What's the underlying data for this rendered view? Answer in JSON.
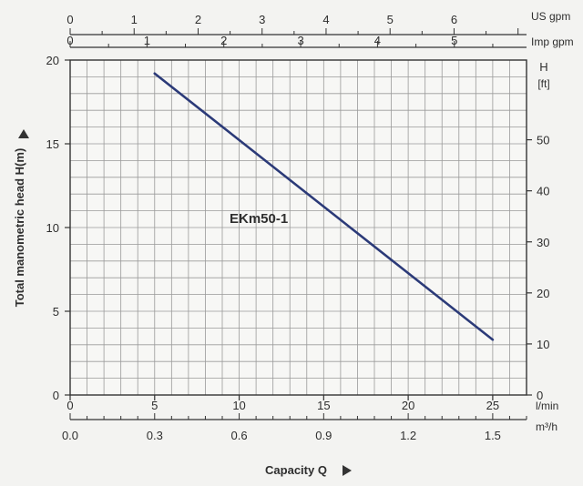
{
  "chart_data": {
    "type": "line",
    "title": "",
    "curve_label": "EKm50-1",
    "xlabel": "Capacity Q",
    "ylabel": "Total manometric head H(m)",
    "x_unit": "l/min",
    "x_unit_m3h": "m³/h",
    "right_axis_title": "H",
    "right_axis_unit": "[ft]",
    "us_gpm_label": "US gpm",
    "imp_gpm_label": "Imp gpm",
    "xlim": [
      0,
      27
    ],
    "ylim": [
      0,
      20
    ],
    "x_ticks": [
      0,
      5,
      10,
      15,
      20,
      25
    ],
    "y_ticks": [
      0,
      5,
      10,
      15,
      20
    ],
    "m3h_ticks": [
      "0.0",
      "0.3",
      "0.6",
      "0.9",
      "1.2",
      "1.5"
    ],
    "ft_ticks": [
      0,
      10,
      20,
      30,
      40,
      50
    ],
    "us_gpm_ticks": [
      0,
      1,
      2,
      3,
      4,
      5,
      6
    ],
    "imp_gpm_ticks": [
      0,
      1,
      2,
      3,
      4,
      5
    ],
    "grid": true,
    "series": [
      {
        "name": "EKm50-1",
        "x": [
          5,
          25
        ],
        "y": [
          19.2,
          3.3
        ],
        "color": "#2b3a78"
      }
    ]
  }
}
